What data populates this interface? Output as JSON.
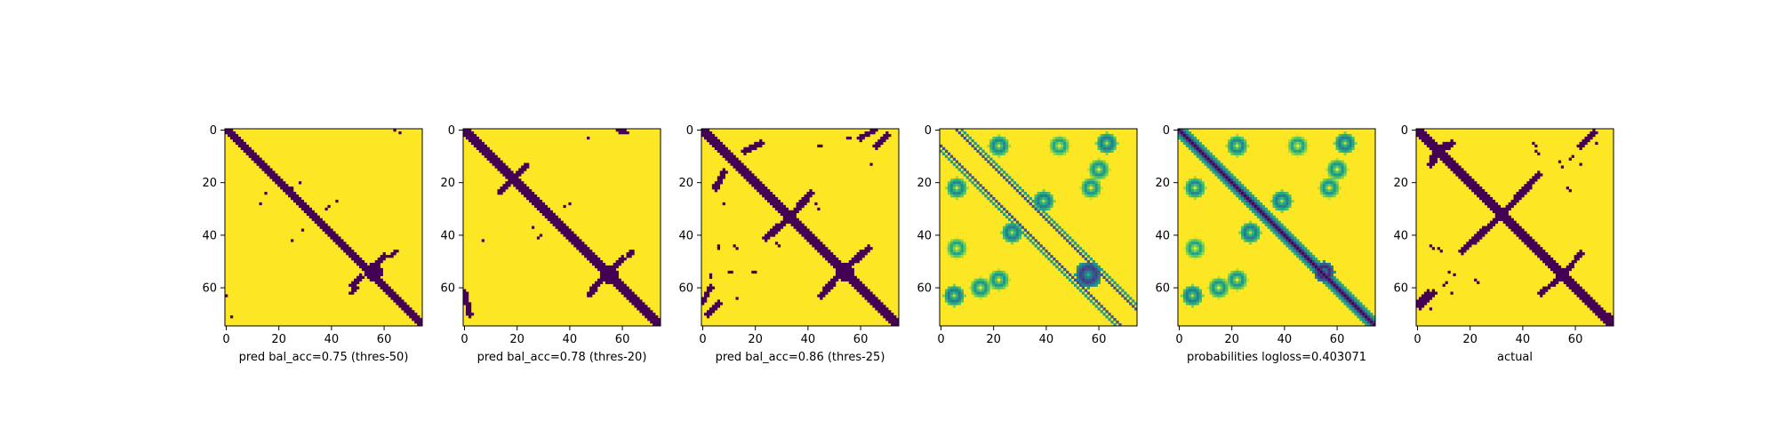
{
  "colors": {
    "low": "#440154",
    "high": "#fde725",
    "axis": "#000000"
  },
  "chart_data": [
    {
      "type": "heatmap",
      "kind": "binary",
      "title": "",
      "xlabel": "pred bal_acc=0.75 (thres-50)",
      "ylabel": "",
      "size": 75,
      "xlim": [
        0,
        75
      ],
      "ylim": [
        75,
        0
      ],
      "xticks": [
        0,
        20,
        40,
        60
      ],
      "yticks": [
        0,
        20,
        40,
        60
      ],
      "bands": [
        {
          "off": 0,
          "w": 1.6
        },
        {
          "off": -1,
          "w": 1.0
        }
      ],
      "blobs": [
        {
          "x": 56,
          "y": 54,
          "r": 3.2
        }
      ],
      "segments": [
        {
          "x1": 57,
          "y1": 51,
          "x2": 60,
          "y2": 48,
          "w": 1.0
        },
        {
          "x1": 51,
          "y1": 56,
          "x2": 48,
          "y2": 59,
          "w": 1.0
        },
        {
          "x1": 62,
          "y1": 48,
          "x2": 65,
          "y2": 46,
          "w": 0.8
        },
        {
          "x1": 47,
          "y1": 62,
          "x2": 50,
          "y2": 60,
          "w": 0.8
        }
      ],
      "dots": [
        [
          64,
          0
        ],
        [
          66,
          1
        ],
        [
          0,
          63
        ],
        [
          2,
          71
        ],
        [
          13,
          28
        ],
        [
          15,
          24
        ],
        [
          25,
          22
        ],
        [
          28,
          20
        ],
        [
          42,
          27
        ],
        [
          25,
          42
        ],
        [
          29,
          38
        ],
        [
          38,
          30
        ],
        [
          39,
          29
        ]
      ]
    },
    {
      "type": "heatmap",
      "kind": "binary",
      "title": "",
      "xlabel": "pred bal_acc=0.78 (thres-20)",
      "ylabel": "",
      "size": 75,
      "xlim": [
        0,
        75
      ],
      "ylim": [
        75,
        0
      ],
      "xticks": [
        0,
        20,
        40,
        60
      ],
      "yticks": [
        0,
        20,
        40,
        60
      ],
      "bands": [
        {
          "off": 0,
          "w": 2.0
        }
      ],
      "blobs": [
        {
          "x": 55,
          "y": 55,
          "r": 3.5
        },
        {
          "x": 34,
          "y": 34,
          "r": 1.8
        }
      ],
      "segments": [
        {
          "x1": 57,
          "y1": 52,
          "x2": 60,
          "y2": 49,
          "w": 1.2
        },
        {
          "x1": 52,
          "y1": 57,
          "x2": 49,
          "y2": 60,
          "w": 1.2
        },
        {
          "x1": 62,
          "y1": 48,
          "x2": 64,
          "y2": 46,
          "w": 0.8
        },
        {
          "x1": 47,
          "y1": 63,
          "x2": 50,
          "y2": 60,
          "w": 0.8
        },
        {
          "x1": 13,
          "y1": 24,
          "x2": 17,
          "y2": 20,
          "w": 0.8
        },
        {
          "x1": 24,
          "y1": 13,
          "x2": 20,
          "y2": 17,
          "w": 0.8
        },
        {
          "x1": 58,
          "y1": 0,
          "x2": 62,
          "y2": 1,
          "w": 0.8
        },
        {
          "x1": 0,
          "y1": 62,
          "x2": 2,
          "y2": 70,
          "w": 1.0
        }
      ],
      "dots": [
        [
          47,
          3
        ],
        [
          7,
          42
        ],
        [
          26,
          37
        ],
        [
          32,
          32
        ],
        [
          38,
          29
        ],
        [
          40,
          28
        ],
        [
          28,
          41
        ],
        [
          29,
          40
        ]
      ]
    },
    {
      "type": "heatmap",
      "kind": "binary",
      "title": "",
      "xlabel": "pred bal_acc=0.86 (thres-25)",
      "ylabel": "",
      "size": 75,
      "xlim": [
        0,
        75
      ],
      "ylim": [
        75,
        0
      ],
      "xticks": [
        0,
        20,
        40,
        60
      ],
      "yticks": [
        0,
        20,
        40,
        60
      ],
      "bands": [
        {
          "off": 0,
          "w": 2.2
        }
      ],
      "blobs": [
        {
          "x": 33,
          "y": 33,
          "r": 2.8
        },
        {
          "x": 54,
          "y": 54,
          "r": 3.6
        }
      ],
      "segments": [
        {
          "x1": 35,
          "y1": 31,
          "x2": 41,
          "y2": 24,
          "w": 1.3
        },
        {
          "x1": 31,
          "y1": 35,
          "x2": 24,
          "y2": 41,
          "w": 1.3
        },
        {
          "x1": 56,
          "y1": 51,
          "x2": 63,
          "y2": 45,
          "w": 1.3
        },
        {
          "x1": 51,
          "y1": 56,
          "x2": 45,
          "y2": 63,
          "w": 1.3
        },
        {
          "x1": 16,
          "y1": 8,
          "x2": 22,
          "y2": 5,
          "w": 1.0
        },
        {
          "x1": 8,
          "y1": 16,
          "x2": 5,
          "y2": 22,
          "w": 1.0
        },
        {
          "x1": 60,
          "y1": 3,
          "x2": 65,
          "y2": 0,
          "w": 1.0
        },
        {
          "x1": 3,
          "y1": 60,
          "x2": 0,
          "y2": 65,
          "w": 1.0
        },
        {
          "x1": 2,
          "y1": 70,
          "x2": 6,
          "y2": 66,
          "w": 1.0
        },
        {
          "x1": 70,
          "y1": 2,
          "x2": 66,
          "y2": 6,
          "w": 1.0
        }
      ],
      "dots": [
        [
          44,
          6
        ],
        [
          45,
          6
        ],
        [
          55,
          3
        ],
        [
          56,
          3
        ],
        [
          6,
          44
        ],
        [
          6,
          45
        ],
        [
          3,
          55
        ],
        [
          3,
          56
        ],
        [
          12,
          44
        ],
        [
          13,
          45
        ],
        [
          10,
          54
        ],
        [
          11,
          54
        ],
        [
          19,
          54
        ],
        [
          20,
          54
        ],
        [
          28,
          43
        ],
        [
          29,
          44
        ],
        [
          43,
          28
        ],
        [
          44,
          30
        ],
        [
          13,
          64
        ],
        [
          64,
          13
        ],
        [
          4,
          21
        ],
        [
          8,
          28
        ]
      ]
    },
    {
      "type": "heatmap",
      "kind": "probability",
      "title": "",
      "xlabel": "",
      "ylabel": "",
      "size": 75,
      "xlim": [
        0,
        75
      ],
      "ylim": [
        75,
        0
      ],
      "xticks": [
        0,
        20,
        40,
        60
      ],
      "yticks": [
        0,
        20,
        40,
        60
      ],
      "bands": [
        {
          "off": -6,
          "w": 0.6,
          "v": 0.25
        },
        {
          "off": 6,
          "w": 0.6,
          "v": 0.25
        },
        {
          "off": -8,
          "w": 0.5,
          "v": 0.55
        },
        {
          "off": 8,
          "w": 0.5,
          "v": 0.55
        }
      ],
      "clusters": [
        {
          "x": 22,
          "y": 6,
          "r": 4,
          "v": 0.45
        },
        {
          "x": 6,
          "y": 22,
          "r": 4,
          "v": 0.45
        },
        {
          "x": 45,
          "y": 6,
          "r": 4,
          "v": 0.55
        },
        {
          "x": 6,
          "y": 45,
          "r": 4,
          "v": 0.55
        },
        {
          "x": 63,
          "y": 5,
          "r": 4,
          "v": 0.4
        },
        {
          "x": 5,
          "y": 63,
          "r": 4,
          "v": 0.4
        },
        {
          "x": 27,
          "y": 39,
          "r": 4,
          "v": 0.4
        },
        {
          "x": 39,
          "y": 27,
          "r": 4,
          "v": 0.4
        },
        {
          "x": 56,
          "y": 55,
          "r": 5,
          "v": 0.15
        },
        {
          "x": 60,
          "y": 15,
          "r": 4,
          "v": 0.5
        },
        {
          "x": 15,
          "y": 60,
          "r": 4,
          "v": 0.5
        },
        {
          "x": 22,
          "y": 57,
          "r": 4,
          "v": 0.5
        },
        {
          "x": 57,
          "y": 22,
          "r": 4,
          "v": 0.5
        }
      ]
    },
    {
      "type": "heatmap",
      "kind": "probability",
      "title": "",
      "xlabel": "probabilities logloss=0.403071",
      "ylabel": "",
      "size": 75,
      "xlim": [
        0,
        75
      ],
      "ylim": [
        75,
        0
      ],
      "xticks": [
        0,
        20,
        40,
        60
      ],
      "yticks": [
        0,
        20,
        40,
        60
      ],
      "bands": [
        {
          "off": 0,
          "w": 1.6,
          "v": 0.0
        },
        {
          "off": 0,
          "w": 3.0,
          "v": 0.3
        }
      ],
      "clusters": [
        {
          "x": 22,
          "y": 6,
          "r": 4,
          "v": 0.45
        },
        {
          "x": 6,
          "y": 22,
          "r": 4,
          "v": 0.45
        },
        {
          "x": 45,
          "y": 6,
          "r": 4,
          "v": 0.55
        },
        {
          "x": 6,
          "y": 45,
          "r": 4,
          "v": 0.55
        },
        {
          "x": 63,
          "y": 5,
          "r": 4,
          "v": 0.4
        },
        {
          "x": 5,
          "y": 63,
          "r": 4,
          "v": 0.4
        },
        {
          "x": 27,
          "y": 39,
          "r": 4,
          "v": 0.4
        },
        {
          "x": 39,
          "y": 27,
          "r": 4,
          "v": 0.4
        },
        {
          "x": 55,
          "y": 54,
          "r": 4,
          "v": 0.1
        },
        {
          "x": 60,
          "y": 15,
          "r": 4,
          "v": 0.5
        },
        {
          "x": 15,
          "y": 60,
          "r": 4,
          "v": 0.5
        },
        {
          "x": 22,
          "y": 57,
          "r": 4,
          "v": 0.5
        },
        {
          "x": 57,
          "y": 22,
          "r": 4,
          "v": 0.5
        }
      ]
    },
    {
      "type": "heatmap",
      "kind": "binary",
      "title": "",
      "xlabel": "actual",
      "ylabel": "",
      "size": 75,
      "xlim": [
        0,
        75
      ],
      "ylim": [
        75,
        0
      ],
      "xticks": [
        0,
        20,
        40,
        60
      ],
      "yticks": [
        0,
        20,
        40,
        60
      ],
      "bands": [
        {
          "off": 0,
          "w": 2.0
        }
      ],
      "blobs": [
        {
          "x": 32,
          "y": 32,
          "r": 2.8
        },
        {
          "x": 55,
          "y": 55,
          "r": 2.5
        },
        {
          "x": 73,
          "y": 72,
          "r": 2.0
        }
      ],
      "segments": [
        {
          "x1": 34,
          "y1": 30,
          "x2": 46,
          "y2": 17,
          "w": 1.2
        },
        {
          "x1": 30,
          "y1": 34,
          "x2": 17,
          "y2": 46,
          "w": 1.2
        },
        {
          "x1": 57,
          "y1": 53,
          "x2": 62,
          "y2": 47,
          "w": 1.0
        },
        {
          "x1": 53,
          "y1": 57,
          "x2": 47,
          "y2": 62,
          "w": 1.0
        },
        {
          "x1": 6,
          "y1": 10,
          "x2": 13,
          "y2": 5,
          "w": 1.2
        },
        {
          "x1": 10,
          "y1": 6,
          "x2": 5,
          "y2": 13,
          "w": 1.2
        },
        {
          "x1": 62,
          "y1": 6,
          "x2": 67,
          "y2": 1,
          "w": 1.0
        },
        {
          "x1": 6,
          "y1": 62,
          "x2": 1,
          "y2": 67,
          "w": 1.0
        },
        {
          "x1": 0,
          "y1": 66,
          "x2": 4,
          "y2": 62,
          "w": 1.0
        }
      ],
      "dots": [
        [
          44,
          5
        ],
        [
          45,
          6
        ],
        [
          5,
          44
        ],
        [
          6,
          45
        ],
        [
          54,
          12
        ],
        [
          55,
          14
        ],
        [
          12,
          54
        ],
        [
          14,
          55
        ],
        [
          22,
          57
        ],
        [
          23,
          58
        ],
        [
          57,
          22
        ],
        [
          58,
          23
        ],
        [
          8,
          45
        ],
        [
          9,
          46
        ],
        [
          45,
          8
        ],
        [
          46,
          9
        ],
        [
          10,
          59
        ],
        [
          11,
          58
        ],
        [
          59,
          10
        ],
        [
          58,
          11
        ],
        [
          13,
          62
        ],
        [
          62,
          13
        ],
        [
          68,
          5
        ],
        [
          5,
          68
        ]
      ]
    }
  ]
}
